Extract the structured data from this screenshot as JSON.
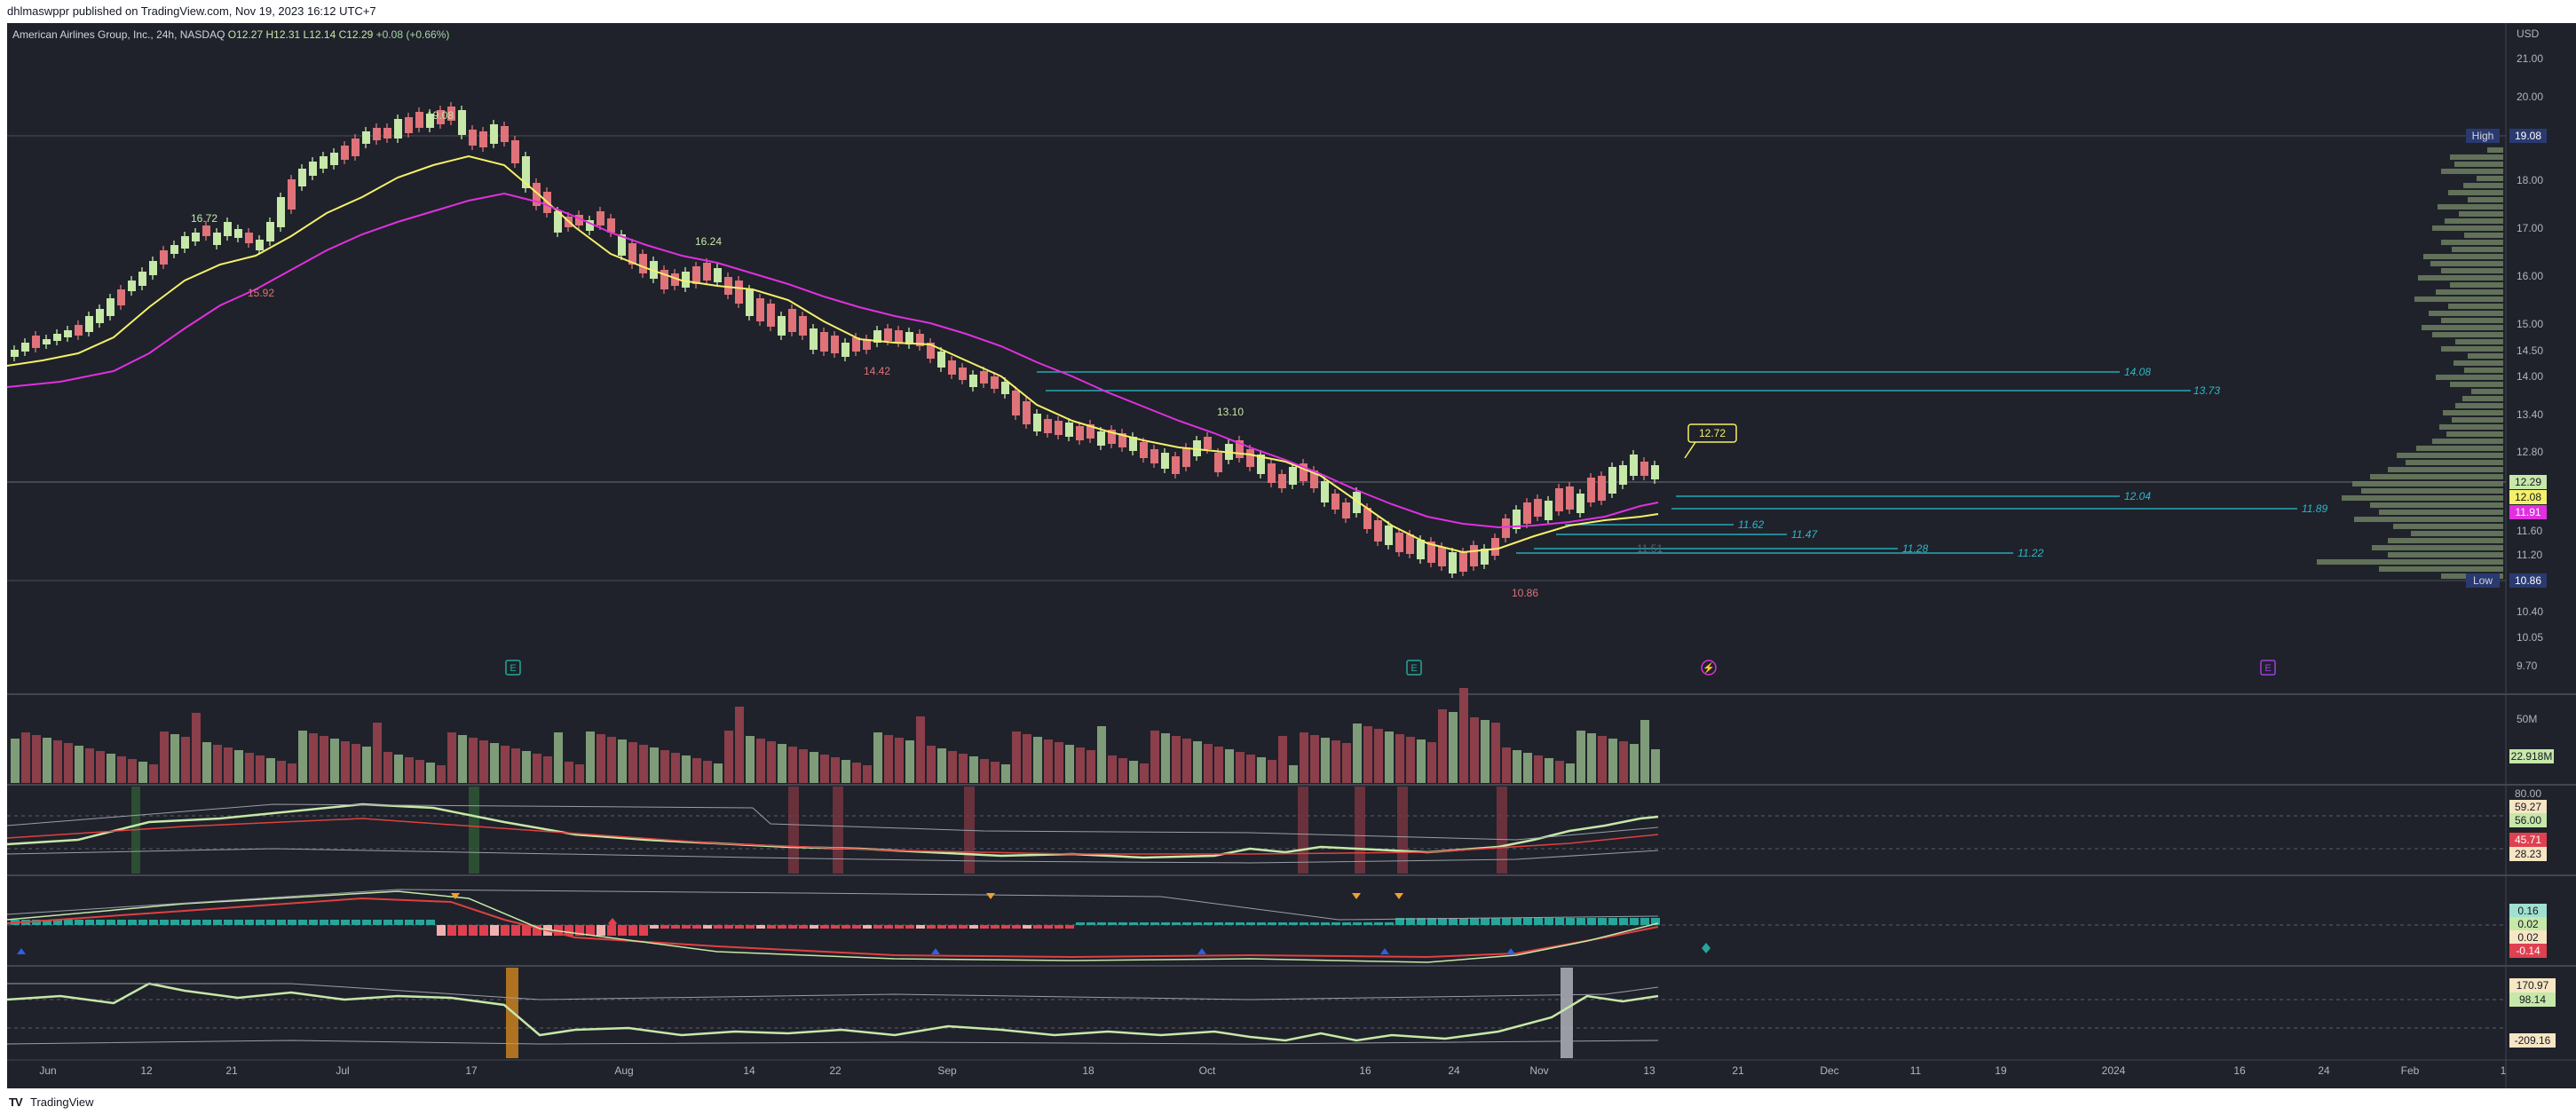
{
  "header": {
    "published_text": "dhlmaswppr published on TradingView.com, Nov 19, 2023 16:12 UTC+7"
  },
  "footer": {
    "brand": "TradingView"
  },
  "legend": {
    "symbol": "American Airlines Group, Inc., 24h, NASDAQ",
    "open": "O12.27",
    "high": "H12.31",
    "low": "L12.14",
    "close": "C12.29",
    "change": "+0.08 (+0.66%)"
  },
  "price_axis": {
    "currency": "USD",
    "ticks": [
      "21.00",
      "20.00",
      "18.00",
      "17.00",
      "16.00",
      "15.00",
      "14.50",
      "14.00",
      "13.40",
      "12.80",
      "11.60",
      "11.20",
      "10.40",
      "10.05",
      "9.70"
    ],
    "badges": {
      "high_label": "High",
      "high_value": "19.08",
      "low_label": "Low",
      "low_value": "10.86",
      "last_value": "12.29",
      "ema_fast": "12.08",
      "ema_slow": "11.91"
    }
  },
  "time_axis": {
    "labels": [
      "Jun",
      "12",
      "21",
      "Jul",
      "17",
      "Aug",
      "14",
      "22",
      "Sep",
      "18",
      "Oct",
      "16",
      "24",
      "Nov",
      "13",
      "21",
      "Dec",
      "11",
      "19",
      "2024",
      "16",
      "24",
      "Feb",
      "1"
    ]
  },
  "annotations": {
    "peak": "19.08",
    "swing_high_1": "16.72",
    "swing_low_1": "15.92",
    "swing_high_2": "16.24",
    "swing_low_2": "14.42",
    "swing_high_3": "13.10",
    "bottom": "10.86",
    "callout": "12.72",
    "faint_level": "11.51"
  },
  "levels": [
    {
      "label": "14.08"
    },
    {
      "label": "13.73"
    },
    {
      "label": "12.04"
    },
    {
      "label": "11.89"
    },
    {
      "label": "11.62"
    },
    {
      "label": "11.47"
    },
    {
      "label": "11.28"
    },
    {
      "label": "11.22"
    }
  ],
  "volume_pane": {
    "scale_label": "50M",
    "current_badge": "22.918M"
  },
  "pane1": {
    "badges": [
      "80.00",
      "59.27",
      "56.00",
      "45.71",
      "28.23"
    ]
  },
  "pane2": {
    "badges": [
      "0.16",
      "0.02",
      "0.02",
      "-0.14"
    ]
  },
  "pane3": {
    "badges": [
      "170.97",
      "98.14",
      "-209.16"
    ]
  },
  "event_markers": [
    "E",
    "E",
    "⚡",
    "E"
  ],
  "colors": {
    "background": "#1f222a",
    "up": "#c6e8a8",
    "down": "#e0727a",
    "ema_fast": "#f5f06a",
    "ema_slow": "#e030e0",
    "level_line": "#26a8b8",
    "volume_up": "#7f9c79",
    "volume_down": "#8a3f4a"
  }
}
